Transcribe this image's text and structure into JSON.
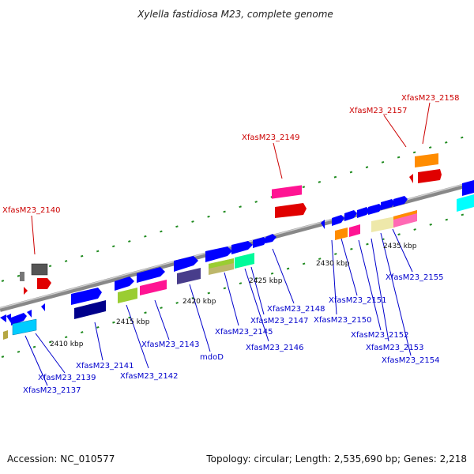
{
  "title": "Xylella fastidiosa M23, complete genome",
  "footer": {
    "accession": "Accession: NC_010577",
    "summary": "Topology: circular; Length: 2,535,690 bp; Genes: 2,218"
  },
  "colors": {
    "label_blue": "#0000cc",
    "label_red": "#cc0000",
    "backbone": "#888888",
    "tick_green": "#1e8a1e"
  },
  "scale_labels": [
    "2410 kbp",
    "2415 kbp",
    "2420 kbp",
    "2425 kbp",
    "2430 kbp",
    "2435 kbp"
  ],
  "gene_labels": {
    "g2137": "XfasM23_2137",
    "g2139": "XfasM23_2139",
    "g2140": "XfasM23_2140",
    "g2141": "XfasM23_2141",
    "g2142": "XfasM23_2142",
    "g2143": "XfasM23_2143",
    "mdoD": "mdoD",
    "g2145": "XfasM23_2145",
    "g2146": "XfasM23_2146",
    "g2147": "XfasM23_2147",
    "g2148": "XfasM23_2148",
    "g2149": "XfasM23_2149",
    "g2150": "XfasM23_2150",
    "g2151": "XfasM23_2151",
    "g2152": "XfasM23_2152",
    "g2153": "XfasM23_2153",
    "g2154": "XfasM23_2154",
    "g2155": "XfasM23_2155",
    "g2157": "XfasM23_2157",
    "g2158": "XfasM23_2158"
  }
}
